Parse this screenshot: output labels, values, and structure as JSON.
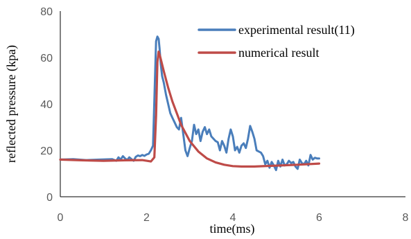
{
  "chart_data": {
    "type": "line",
    "xlabel": "time(ms)",
    "ylabel": "reflected pressure (kpa)",
    "xlim": [
      0,
      8
    ],
    "ylim": [
      0,
      80
    ],
    "xticks": [
      "0",
      "2",
      "4",
      "6",
      "8"
    ],
    "yticks": [
      "0",
      "20",
      "40",
      "60",
      "80"
    ],
    "grid": false,
    "legend_position": "top-right",
    "series": [
      {
        "name": "experimental result(11)",
        "color": "#4a7ebb",
        "x": [
          0.0,
          0.3,
          0.6,
          0.9,
          1.2,
          1.3,
          1.35,
          1.4,
          1.45,
          1.5,
          1.55,
          1.6,
          1.65,
          1.7,
          1.75,
          1.8,
          1.85,
          1.9,
          1.95,
          2.0,
          2.05,
          2.1,
          2.15,
          2.2,
          2.22,
          2.25,
          2.28,
          2.3,
          2.33,
          2.36,
          2.4,
          2.45,
          2.5,
          2.55,
          2.6,
          2.65,
          2.7,
          2.75,
          2.8,
          2.85,
          2.9,
          2.95,
          3.0,
          3.05,
          3.1,
          3.15,
          3.2,
          3.25,
          3.3,
          3.35,
          3.4,
          3.45,
          3.5,
          3.55,
          3.6,
          3.65,
          3.7,
          3.75,
          3.8,
          3.85,
          3.9,
          3.95,
          4.0,
          4.05,
          4.1,
          4.15,
          4.2,
          4.25,
          4.3,
          4.35,
          4.4,
          4.45,
          4.5,
          4.55,
          4.6,
          4.65,
          4.7,
          4.75,
          4.8,
          4.85,
          4.9,
          4.95,
          5.0,
          5.05,
          5.1,
          5.15,
          5.2,
          5.25,
          5.3,
          5.35,
          5.4,
          5.45,
          5.5,
          5.55,
          5.6,
          5.65,
          5.7,
          5.75,
          5.8,
          5.85,
          5.9,
          5.95,
          6.0
        ],
        "y": [
          16.0,
          16.2,
          15.8,
          16.0,
          16.2,
          15.5,
          17.0,
          16.0,
          17.5,
          16.5,
          15.8,
          17.0,
          16.2,
          15.5,
          17.2,
          17.8,
          17.5,
          18.0,
          17.6,
          18.2,
          18.5,
          20.0,
          22.0,
          55.0,
          67.0,
          69.0,
          68.0,
          64.0,
          57.0,
          52.0,
          49.0,
          44.0,
          40.0,
          36.0,
          34.0,
          32.0,
          30.0,
          29.0,
          34.0,
          27.0,
          20.0,
          17.5,
          21.0,
          24.0,
          31.0,
          27.0,
          29.0,
          24.0,
          28.0,
          30.0,
          27.0,
          29.0,
          26.0,
          25.0,
          24.0,
          23.5,
          20.0,
          24.0,
          22.0,
          19.0,
          25.0,
          29.0,
          26.0,
          20.0,
          21.5,
          19.0,
          22.0,
          23.0,
          21.0,
          25.0,
          30.5,
          28.0,
          25.0,
          20.0,
          19.5,
          19.0,
          17.5,
          14.0,
          15.5,
          12.5,
          15.0,
          13.5,
          11.5,
          15.5,
          13.0,
          16.0,
          13.5,
          14.0,
          15.5,
          14.5,
          15.0,
          13.0,
          12.0,
          16.0,
          14.5,
          14.0,
          15.5,
          13.5,
          18.0,
          16.0,
          16.8,
          16.5,
          16.5
        ]
      },
      {
        "name": "numerical result",
        "color": "#be4b48",
        "x": [
          0.0,
          0.5,
          1.0,
          1.5,
          1.9,
          2.1,
          2.18,
          2.22,
          2.25,
          2.28,
          2.32,
          2.4,
          2.5,
          2.6,
          2.7,
          2.8,
          3.0,
          3.2,
          3.4,
          3.6,
          3.8,
          4.0,
          4.2,
          4.5,
          5.0,
          5.5,
          6.0
        ],
        "y": [
          16.0,
          15.7,
          15.5,
          15.7,
          15.8,
          15.2,
          17.0,
          35.0,
          58.0,
          62.5,
          60.0,
          54.0,
          47.0,
          41.0,
          36.0,
          31.0,
          24.0,
          19.5,
          16.5,
          14.8,
          13.8,
          13.2,
          13.0,
          13.0,
          13.4,
          13.8,
          14.3
        ]
      }
    ]
  }
}
